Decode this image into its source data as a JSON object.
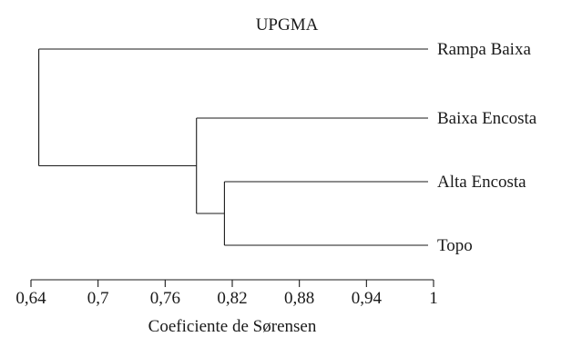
{
  "title": "UPGMA",
  "axis": {
    "label": "Coeficiente de Sørensen",
    "ticks": [
      {
        "value": 0.64,
        "label": "0,64"
      },
      {
        "value": 0.7,
        "label": "0,7"
      },
      {
        "value": 0.76,
        "label": "0,76"
      },
      {
        "value": 0.82,
        "label": "0,82"
      },
      {
        "value": 0.88,
        "label": "0,88"
      },
      {
        "value": 0.94,
        "label": "0,94"
      },
      {
        "value": 1.0,
        "label": "1"
      }
    ]
  },
  "chart_data": {
    "type": "dendrogram",
    "method": "UPGMA",
    "title": "UPGMA",
    "xlabel": "Coeficiente de Sørensen",
    "xlim": [
      0.64,
      1.0
    ],
    "leaves": [
      "Rampa Baixa",
      "Baixa Encosta",
      "Alta Encosta",
      "Topo"
    ],
    "merges": [
      {
        "members": [
          "Alta Encosta",
          "Topo"
        ],
        "similarity": 0.813
      },
      {
        "members": [
          "Baixa Encosta",
          "Alta Encosta + Topo"
        ],
        "similarity": 0.788
      },
      {
        "members": [
          "Rampa Baixa",
          "Baixa Encosta + Alta Encosta + Topo"
        ],
        "similarity": 0.647
      }
    ]
  }
}
